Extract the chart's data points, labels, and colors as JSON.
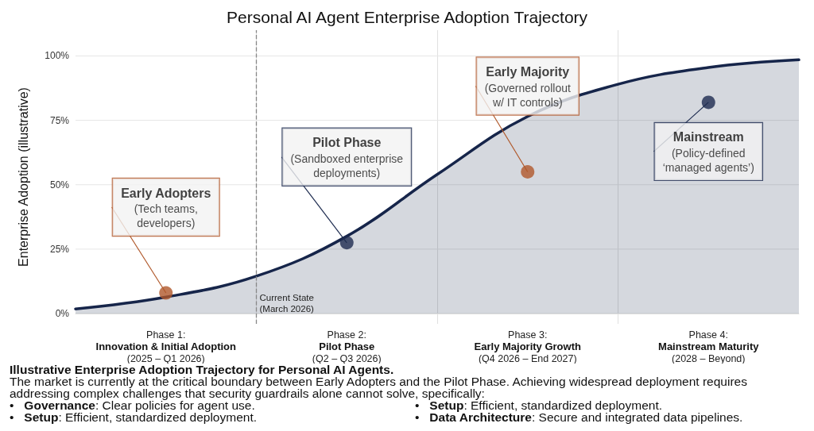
{
  "chart_data": {
    "type": "area",
    "title": "Personal AI Agent Enterprise Adoption Trajectory",
    "ylabel": "Enterprise Adoption (illustrative)",
    "categories": [
      null,
      "Phase 1:\nInnovation & Initial Adoption\n(2025 – Q1 2026)",
      null,
      "Phase 2:\nPilot Phase\n(Q2 – Q3 2026)",
      null,
      "Phase 3:\nEarly Majority Growth\n(Q4 2026 – End 2027)",
      null,
      "Phase 4:\nMainstream Maturity\n(2028 – Beyond)",
      null
    ],
    "series": [
      {
        "color": "#16254a",
        "values": [
          1.8,
          6.4,
          14.5,
          30,
          54,
          76.5,
          89,
          95.5,
          98.5
        ]
      },
      {
        "type": "scatter",
        "marker": "circle",
        "x": [
          "Phase 1:\nInnovation & Initial Adoption\n(2025 – Q1 2026)",
          "Phase 2:\nPilot Phase\n(Q2 – Q3 2026)",
          "Phase 3:\nEarly Majority Growth\n(Q4 2026 – End 2027)",
          "Phase 4:\nMainstream Maturity\n(2028 – Beyond)"
        ],
        "values": [
          8,
          27.5,
          55,
          82
        ],
        "colors": [
          "#b0582a",
          "#1d2b4f",
          "#b0582a",
          "#1d2b4f"
        ]
      }
    ],
    "ylim": [
      -4,
      110
    ],
    "yticks": [
      {
        "value": 0,
        "label": "0%"
      },
      {
        "value": 25,
        "label": "25%"
      },
      {
        "value": 50,
        "label": "50%"
      },
      {
        "value": 75,
        "label": "75%"
      },
      {
        "value": 100,
        "label": "100%"
      }
    ],
    "grid": true,
    "annotations": [
      {
        "text": "Early Adopters\n(Tech teams,\ndevelopers)",
        "x": "Phase 1:\nInnovation & Initial Adoption\n(2025 – Q1 2026)",
        "y": 8
      },
      {
        "text": "Pilot Phase\n(Sandboxed enterprise\ndeployments)",
        "x": "Phase 2:\nPilot Phase\n(Q2 – Q3 2026)",
        "y": 27.5
      },
      {
        "text": "Early Majority\n(Governed rollout\nw/ IT controls)",
        "x": "Phase 3:\nEarly Majority Growth\n(Q4 2026 – End 2027)",
        "y": 55
      },
      {
        "text": "Mainstream\n(Policy-defined\n‘managed agents’)",
        "x": "Phase 4:\nMainstream Maturity\n(2028 – Beyond)",
        "y": 82
      },
      "Current State\n(March 2026)",
      "Illustrative Enterprise Adoption Trajectory for Personal AI Agents.",
      "The market is currently at the critical boundary between Early Adopters and the Pilot Phase. Achieving widespread deployment requires addressing complex challenges that security guardrails alone cannot solve, specifically:",
      "•   Governance: Clear policies for agent use.",
      "•   Setup: Efficient, standardized deployment.",
      "•   Setup: Efficient, standardized deployment.",
      "•   Data Architecture: Secure and integrated data pipelines."
    ]
  }
}
